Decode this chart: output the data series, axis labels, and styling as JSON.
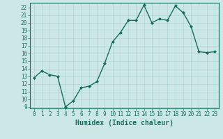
{
  "x": [
    0,
    1,
    2,
    3,
    4,
    5,
    6,
    7,
    8,
    9,
    10,
    11,
    12,
    13,
    14,
    15,
    16,
    17,
    18,
    19,
    20,
    21,
    22,
    23
  ],
  "y": [
    12.8,
    13.7,
    13.2,
    13.0,
    9.0,
    9.8,
    11.5,
    11.7,
    12.3,
    14.7,
    17.5,
    18.7,
    20.3,
    20.3,
    22.3,
    20.0,
    20.5,
    20.3,
    22.2,
    21.3,
    19.5,
    16.2,
    16.1,
    16.2
  ],
  "line_color": "#1a6b5e",
  "marker": "D",
  "marker_size": 2,
  "bg_color": "#cce8e6",
  "grid_color": "#b0d4d0",
  "xlabel": "Humidex (Indice chaleur)",
  "xlim": [
    -0.5,
    23.5
  ],
  "ylim": [
    8.8,
    22.6
  ],
  "yticks": [
    9,
    10,
    11,
    12,
    13,
    14,
    15,
    16,
    17,
    18,
    19,
    20,
    21,
    22
  ],
  "xticks": [
    0,
    1,
    2,
    3,
    4,
    5,
    6,
    7,
    8,
    9,
    10,
    11,
    12,
    13,
    14,
    15,
    16,
    17,
    18,
    19,
    20,
    21,
    22,
    23
  ],
  "tick_label_fontsize": 5.5,
  "xlabel_fontsize": 7,
  "tick_color": "#1a6b5e",
  "axis_color": "#1a6b5e",
  "linewidth": 1.0
}
